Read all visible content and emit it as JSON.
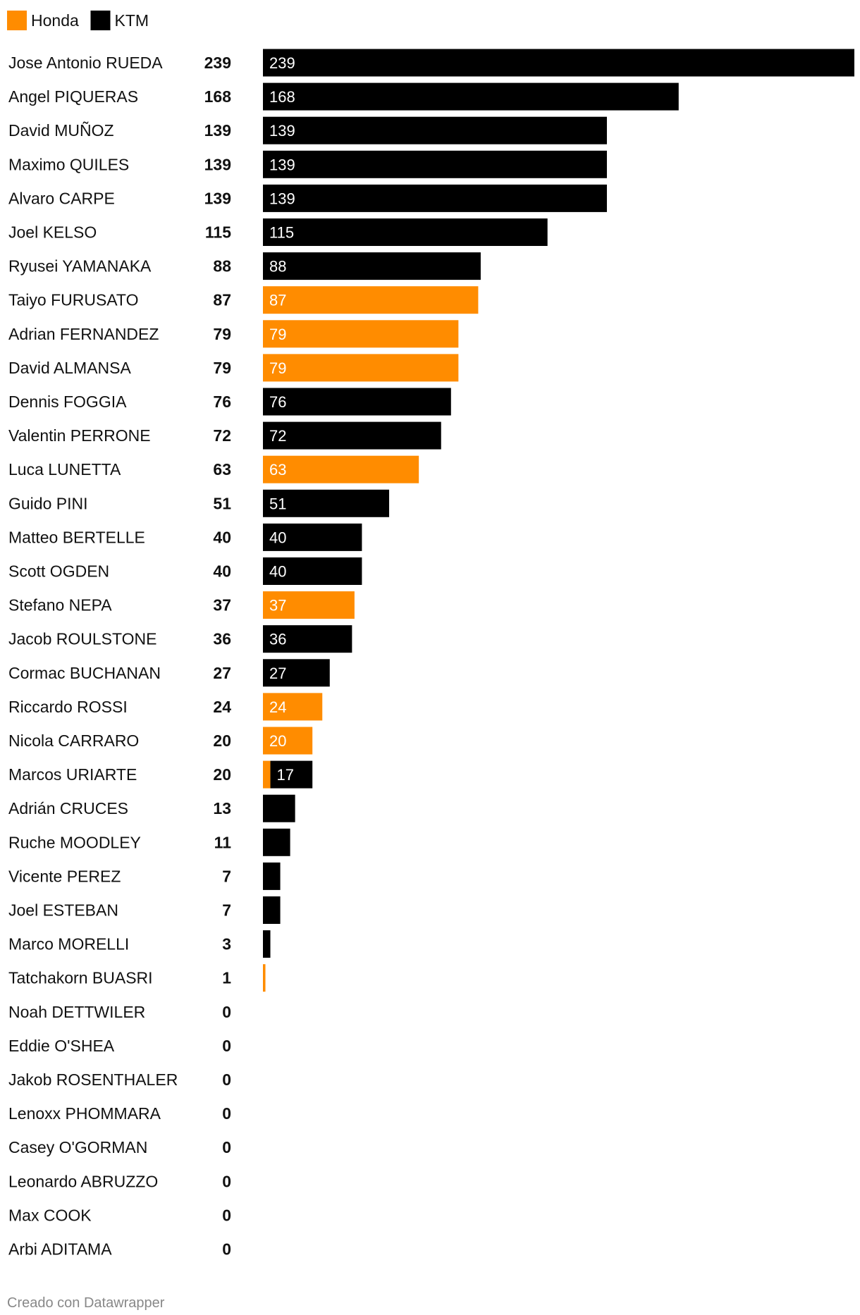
{
  "colors": {
    "Honda": "#ff8c00",
    "KTM": "#000000"
  },
  "footer": {
    "credit": "Creado con Datawrapper"
  },
  "chart_data": {
    "type": "bar",
    "orientation": "horizontal",
    "stacked": true,
    "legend": {
      "position": "top-left",
      "entries": [
        "Honda",
        "KTM"
      ]
    },
    "xlim": [
      0,
      239
    ],
    "categories": [
      "Jose Antonio RUEDA",
      "Angel PIQUERAS",
      "David MUÑOZ",
      "Maximo QUILES",
      "Alvaro CARPE",
      "Joel KELSO",
      "Ryusei YAMANAKA",
      "Taiyo FURUSATO",
      "Adrian FERNANDEZ",
      "David ALMANSA",
      "Dennis FOGGIA",
      "Valentin PERRONE",
      "Luca LUNETTA",
      "Guido PINI",
      "Matteo BERTELLE",
      "Scott OGDEN",
      "Stefano NEPA",
      "Jacob ROULSTONE",
      "Cormac BUCHANAN",
      "Riccardo ROSSI",
      "Nicola CARRARO",
      "Marcos URIARTE",
      "Adrián CRUCES",
      "Ruche MOODLEY",
      "Vicente PEREZ",
      "Joel ESTEBAN",
      "Marco MORELLI",
      "Tatchakorn BUASRI",
      "Noah DETTWILER",
      "Eddie O'SHEA",
      "Jakob ROSENTHALER",
      "Lenoxx PHOMMARA",
      "Casey O'GORMAN",
      "Leonardo ABRUZZO",
      "Max COOK",
      "Arbi ADITAMA"
    ],
    "totals": [
      239,
      168,
      139,
      139,
      139,
      115,
      88,
      87,
      79,
      79,
      76,
      72,
      63,
      51,
      40,
      40,
      37,
      36,
      27,
      24,
      20,
      20,
      13,
      11,
      7,
      7,
      3,
      1,
      0,
      0,
      0,
      0,
      0,
      0,
      0,
      0
    ],
    "series": [
      {
        "name": "Honda",
        "values": [
          0,
          0,
          0,
          0,
          0,
          0,
          0,
          87,
          79,
          79,
          0,
          0,
          63,
          0,
          0,
          0,
          37,
          0,
          0,
          24,
          20,
          3,
          0,
          0,
          0,
          0,
          0,
          1,
          0,
          0,
          0,
          0,
          0,
          0,
          0,
          0
        ]
      },
      {
        "name": "KTM",
        "values": [
          239,
          168,
          139,
          139,
          139,
          115,
          88,
          0,
          0,
          0,
          76,
          72,
          0,
          51,
          40,
          40,
          0,
          36,
          27,
          0,
          0,
          17,
          13,
          11,
          7,
          7,
          3,
          0,
          0,
          0,
          0,
          0,
          0,
          0,
          0,
          0
        ]
      }
    ],
    "bar_labels": {
      "Honda": [
        "",
        "",
        "",
        "",
        "",
        "",
        "",
        "87",
        "79",
        "79",
        "",
        "",
        "63",
        "",
        "",
        "",
        "37",
        "",
        "",
        "24",
        "20",
        "",
        "",
        "",
        "",
        "",
        "",
        "",
        "",
        "",
        "",
        "",
        "",
        "",
        "",
        ""
      ],
      "KTM": [
        "239",
        "168",
        "139",
        "139",
        "139",
        "115",
        "88",
        "",
        "",
        "",
        "76",
        "72",
        "",
        "51",
        "40",
        "40",
        "",
        "36",
        "27",
        "",
        "",
        "17",
        "",
        "",
        "",
        "",
        "",
        "",
        "",
        "",
        "",
        "",
        "",
        "",
        "",
        ""
      ]
    }
  }
}
